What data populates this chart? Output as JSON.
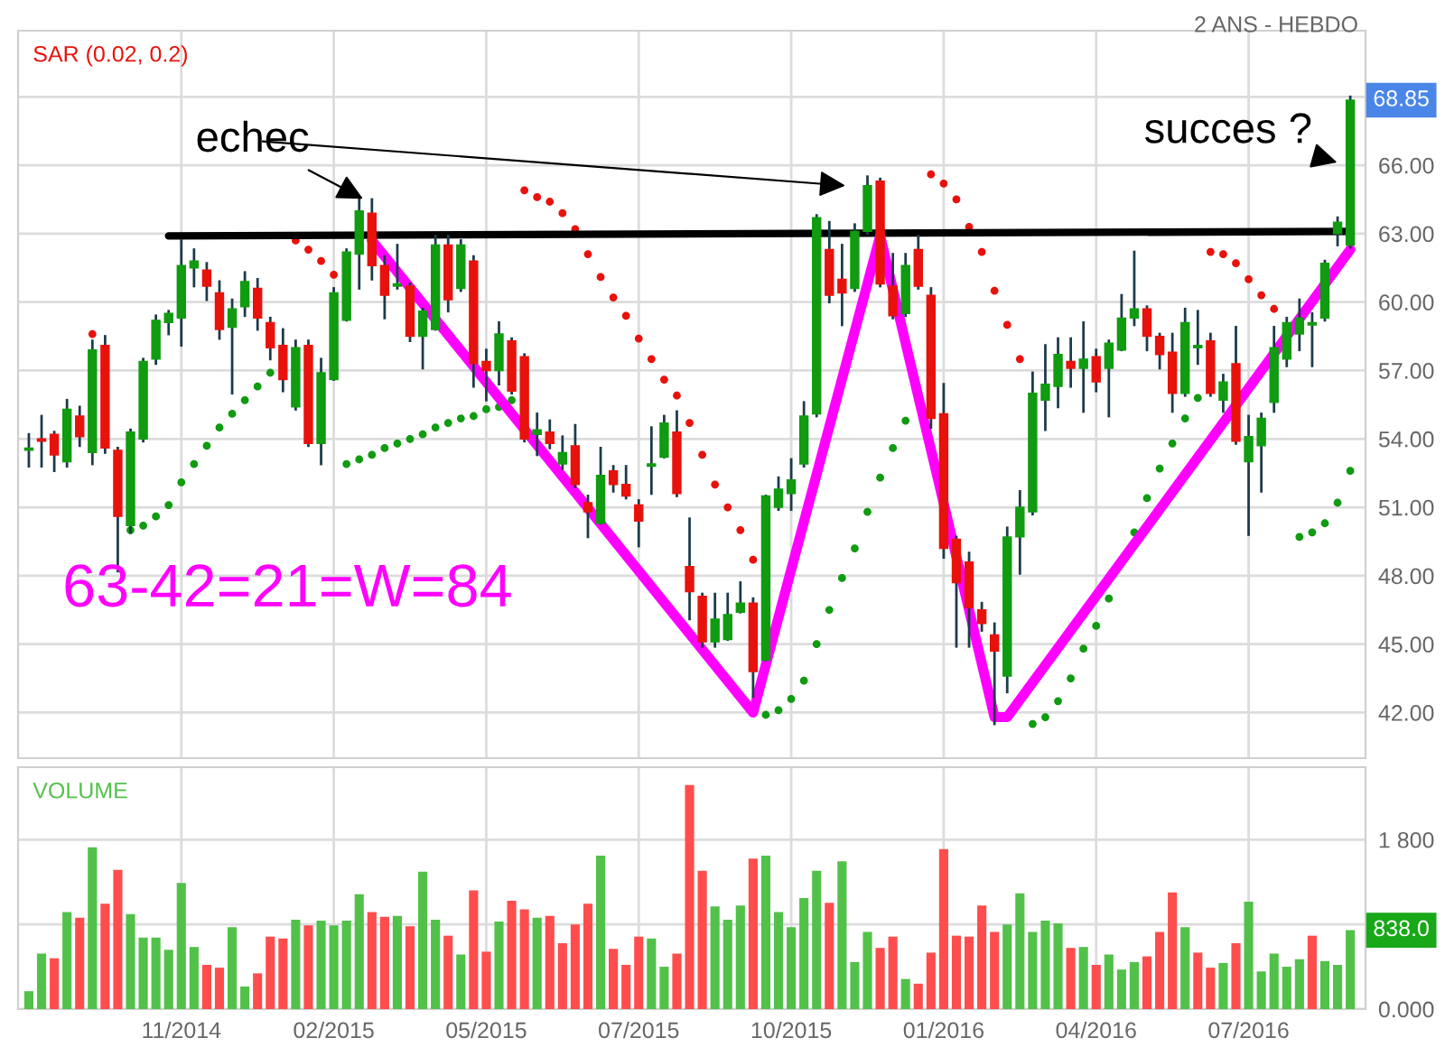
{
  "chart_data": [
    {
      "type": "candlestick",
      "subtitle": "2 ANS - HEBDO",
      "categories": [
        null,
        null,
        null,
        null,
        null,
        null,
        null,
        null,
        null,
        null,
        null,
        null,
        null,
        null,
        null,
        null,
        null,
        null,
        null,
        null,
        null,
        null,
        null,
        null,
        null,
        null,
        null,
        null,
        null,
        null,
        null,
        null,
        null,
        null,
        null,
        null,
        null,
        null,
        null,
        null,
        null,
        null,
        null,
        null,
        null,
        null,
        null,
        null,
        null,
        null,
        null,
        null,
        null,
        null,
        null,
        null,
        null,
        null,
        null,
        null,
        null,
        null,
        null,
        null,
        null,
        null,
        null,
        null,
        null,
        null,
        null,
        null,
        null,
        null,
        null,
        null,
        null,
        null,
        null,
        null,
        null,
        null,
        null,
        null,
        null,
        null,
        null,
        null,
        null,
        null,
        null,
        null,
        null,
        null,
        null,
        null,
        null,
        null,
        null,
        null,
        null,
        null,
        null,
        null,
        null
      ],
      "ohlc": [
        [
          53.5,
          54.2,
          52.8,
          53.6
        ],
        [
          54.0,
          55.0,
          52.8,
          53.9
        ],
        [
          54.2,
          54.3,
          52.6,
          53.3
        ],
        [
          53.0,
          55.7,
          52.8,
          55.3
        ],
        [
          55.0,
          55.4,
          53.7,
          54.1
        ],
        [
          53.4,
          58.3,
          52.9,
          57.9
        ],
        [
          58.1,
          58.5,
          53.4,
          53.6
        ],
        [
          53.5,
          53.6,
          48.2,
          50.6
        ],
        [
          50.2,
          54.4,
          49.9,
          54.3
        ],
        [
          54.0,
          57.5,
          53.9,
          57.4
        ],
        [
          57.5,
          59.4,
          57.3,
          59.2
        ],
        [
          59.1,
          59.6,
          58.6,
          59.5
        ],
        [
          59.3,
          62.7,
          58.1,
          61.6
        ],
        [
          61.5,
          62.3,
          60.7,
          61.8
        ],
        [
          61.4,
          61.7,
          60.1,
          60.7
        ],
        [
          60.4,
          60.9,
          58.4,
          58.8
        ],
        [
          58.9,
          60.1,
          56.0,
          59.7
        ],
        [
          59.8,
          61.3,
          59.4,
          60.9
        ],
        [
          60.6,
          61.0,
          58.8,
          59.3
        ],
        [
          59.1,
          59.3,
          57.5,
          58.0
        ],
        [
          58.1,
          58.8,
          56.1,
          56.6
        ],
        [
          55.4,
          58.3,
          55.3,
          58.0
        ],
        [
          58.1,
          58.3,
          53.7,
          53.8
        ],
        [
          53.8,
          57.5,
          52.9,
          56.9
        ],
        [
          56.6,
          60.6,
          56.6,
          60.4
        ],
        [
          59.2,
          62.3,
          59.2,
          62.2
        ],
        [
          62.1,
          64.5,
          60.6,
          64.0
        ],
        [
          63.9,
          64.5,
          61.0,
          61.6
        ],
        [
          61.6,
          62.0,
          59.3,
          60.3
        ],
        [
          60.7,
          62.5,
          60.6,
          60.8
        ],
        [
          60.7,
          60.8,
          58.3,
          58.5
        ],
        [
          58.5,
          59.7,
          57.1,
          59.6
        ],
        [
          58.8,
          62.9,
          58.8,
          62.5
        ],
        [
          62.5,
          62.9,
          59.6,
          60.1
        ],
        [
          60.6,
          62.7,
          60.5,
          62.5
        ],
        [
          61.8,
          62.0,
          56.3,
          57.3
        ],
        [
          57.4,
          57.9,
          55.7,
          57.0
        ],
        [
          57.0,
          59.1,
          56.4,
          58.6
        ],
        [
          58.3,
          58.4,
          56.0,
          56.1
        ],
        [
          57.6,
          57.7,
          53.9,
          54.0
        ],
        [
          54.2,
          55.1,
          53.3,
          54.4
        ],
        [
          54.3,
          54.8,
          53.6,
          53.8
        ],
        [
          52.9,
          54.1,
          52.7,
          53.4
        ],
        [
          53.7,
          54.6,
          51.9,
          52.0
        ],
        [
          51.2,
          51.5,
          49.7,
          50.8
        ],
        [
          50.3,
          53.6,
          50.3,
          52.4
        ],
        [
          52.6,
          52.8,
          51.7,
          52.0
        ],
        [
          52.0,
          52.8,
          51.4,
          51.5
        ],
        [
          51.1,
          51.3,
          49.3,
          50.4
        ],
        [
          52.8,
          54.5,
          51.6,
          52.9
        ],
        [
          53.2,
          55.0,
          53.2,
          54.7
        ],
        [
          54.3,
          55.2,
          51.5,
          51.6
        ],
        [
          48.4,
          50.5,
          46.1,
          47.3
        ],
        [
          47.1,
          47.2,
          44.9,
          45.1
        ],
        [
          45.1,
          47.2,
          44.9,
          46.1
        ],
        [
          45.2,
          47.2,
          45.2,
          46.3
        ],
        [
          46.4,
          47.7,
          46.4,
          46.8
        ],
        [
          46.8,
          47.0,
          42.7,
          43.8
        ],
        [
          44.3,
          51.5,
          44.3,
          51.5
        ],
        [
          51.0,
          52.3,
          50.9,
          51.8
        ],
        [
          51.6,
          53.1,
          50.9,
          52.2
        ],
        [
          52.9,
          55.6,
          52.8,
          55.0
        ],
        [
          55.1,
          63.8,
          55.0,
          63.7
        ],
        [
          62.3,
          63.5,
          60.0,
          60.3
        ],
        [
          61.0,
          62.5,
          59.0,
          60.4
        ],
        [
          60.6,
          63.4,
          60.5,
          63.1
        ],
        [
          63.1,
          65.5,
          63.0,
          65.1
        ],
        [
          65.3,
          65.4,
          60.7,
          60.8
        ],
        [
          60.7,
          62.1,
          59.3,
          59.4
        ],
        [
          59.5,
          62.1,
          59.4,
          61.6
        ],
        [
          62.3,
          62.9,
          60.6,
          60.7
        ],
        [
          60.3,
          60.6,
          54.5,
          54.9
        ],
        [
          55.1,
          56.4,
          48.8,
          49.2
        ],
        [
          49.6,
          49.7,
          44.9,
          47.7
        ],
        [
          48.6,
          49.0,
          44.9,
          46.6
        ],
        [
          46.5,
          46.8,
          45.6,
          45.9
        ],
        [
          45.4,
          45.9,
          41.5,
          44.7
        ],
        [
          43.6,
          50.1,
          42.9,
          49.7
        ],
        [
          49.7,
          51.7,
          48.1,
          51.0
        ],
        [
          50.8,
          56.9,
          50.7,
          56.0
        ],
        [
          55.7,
          58.1,
          54.4,
          56.4
        ],
        [
          56.3,
          58.4,
          55.4,
          57.7
        ],
        [
          57.4,
          58.4,
          56.3,
          57.1
        ],
        [
          57.1,
          59.1,
          55.2,
          57.5
        ],
        [
          57.6,
          57.9,
          56.1,
          56.5
        ],
        [
          57.1,
          58.3,
          55.0,
          58.2
        ],
        [
          57.9,
          60.3,
          57.9,
          59.3
        ],
        [
          59.3,
          62.2,
          59.0,
          59.7
        ],
        [
          59.7,
          59.8,
          57.9,
          58.5
        ],
        [
          58.5,
          58.6,
          57.1,
          57.7
        ],
        [
          57.8,
          58.6,
          55.2,
          56.0
        ],
        [
          56.0,
          59.7,
          55.9,
          59.1
        ],
        [
          58.0,
          59.6,
          57.3,
          58.1
        ],
        [
          58.3,
          58.6,
          55.9,
          56.0
        ],
        [
          55.7,
          56.8,
          55.2,
          56.5
        ],
        [
          57.3,
          58.9,
          53.8,
          53.9
        ],
        [
          53.0,
          55.0,
          49.8,
          54.1
        ],
        [
          53.7,
          55.1,
          51.7,
          54.9
        ],
        [
          55.6,
          58.9,
          55.2,
          58.0
        ],
        [
          57.5,
          59.3,
          57.2,
          59.1
        ],
        [
          58.6,
          60.1,
          57.9,
          59.3
        ],
        [
          59.0,
          59.5,
          57.2,
          59.1
        ],
        [
          59.3,
          61.8,
          59.2,
          61.7
        ],
        [
          63.0,
          63.7,
          62.5,
          63.5
        ],
        [
          62.5,
          69.0,
          62.4,
          68.85
        ]
      ],
      "colors": [
        "#109b10",
        "#e8120c",
        "#e8120c",
        "#109b10",
        "#e8120c",
        "#109b10",
        "#e8120c",
        "#e8120c",
        "#109b10",
        "#109b10",
        "#109b10",
        "#109b10",
        "#109b10",
        "#109b10",
        "#e8120c",
        "#e8120c",
        "#109b10",
        "#109b10",
        "#e8120c",
        "#e8120c",
        "#e8120c",
        "#109b10",
        "#e8120c",
        "#109b10",
        "#109b10",
        "#109b10",
        "#109b10",
        "#e8120c",
        "#e8120c",
        "#109b10",
        "#e8120c",
        "#109b10",
        "#109b10",
        "#e8120c",
        "#109b10",
        "#e8120c",
        "#e8120c",
        "#109b10",
        "#e8120c",
        "#e8120c",
        "#109b10",
        "#e8120c",
        "#109b10",
        "#e8120c",
        "#e8120c",
        "#109b10",
        "#e8120c",
        "#e8120c",
        "#e8120c",
        "#109b10",
        "#109b10",
        "#e8120c",
        "#e8120c",
        "#e8120c",
        "#109b10",
        "#109b10",
        "#109b10",
        "#e8120c",
        "#109b10",
        "#109b10",
        "#109b10",
        "#109b10",
        "#109b10",
        "#e8120c",
        "#e8120c",
        "#109b10",
        "#109b10",
        "#e8120c",
        "#e8120c",
        "#109b10",
        "#e8120c",
        "#e8120c",
        "#e8120c",
        "#e8120c",
        "#e8120c",
        "#e8120c",
        "#e8120c",
        "#109b10",
        "#109b10",
        "#109b10",
        "#109b10",
        "#109b10",
        "#e8120c",
        "#109b10",
        "#e8120c",
        "#109b10",
        "#109b10",
        "#109b10",
        "#e8120c",
        "#e8120c",
        "#e8120c",
        "#109b10",
        "#109b10",
        "#e8120c",
        "#109b10",
        "#e8120c",
        "#109b10",
        "#109b10",
        "#109b10",
        "#109b10",
        "#109b10",
        "#109b10",
        "#109b10",
        "#109b10",
        "#109b10"
      ],
      "series": [
        {
          "type": "scatter",
          "name": "SAR (0.02, 0.2)",
          "color": "#e8120c",
          "marker": "circle",
          "values": [
            null,
            null,
            null,
            null,
            null,
            58.6,
            null,
            null,
            null,
            null,
            null,
            null,
            null,
            null,
            null,
            null,
            null,
            null,
            null,
            null,
            null,
            62.7,
            62.3,
            61.8,
            61.2,
            null,
            null,
            null,
            null,
            null,
            null,
            null,
            null,
            null,
            null,
            null,
            null,
            null,
            null,
            64.9,
            64.6,
            64.4,
            63.9,
            63.2,
            62.1,
            61.1,
            60.2,
            59.4,
            58.4,
            57.5,
            56.6,
            55.9,
            54.7,
            53.3,
            52.0,
            51.0,
            50.0,
            48.7,
            null,
            null,
            null,
            null,
            null,
            null,
            null,
            null,
            null,
            null,
            null,
            null,
            null,
            65.6,
            65.2,
            64.5,
            63.3,
            62.2,
            60.5,
            59.0,
            57.5,
            null,
            null,
            null,
            null,
            null,
            null,
            null,
            null,
            null,
            null,
            null,
            null,
            null,
            null,
            62.2,
            62.1,
            61.7,
            61.0,
            60.3,
            59.7,
            null,
            null,
            null,
            null,
            null,
            null
          ]
        },
        {
          "type": "scatter",
          "color": "#109b10",
          "marker": "circle",
          "values": [
            null,
            null,
            null,
            null,
            null,
            null,
            null,
            null,
            50.0,
            50.2,
            50.6,
            51.1,
            52.1,
            52.9,
            53.7,
            54.5,
            55.1,
            55.7,
            56.3,
            56.9,
            null,
            null,
            null,
            null,
            null,
            52.9,
            53.1,
            53.3,
            53.6,
            53.8,
            54.0,
            54.2,
            54.5,
            54.7,
            54.9,
            55.0,
            55.3,
            55.4,
            55.7,
            null,
            null,
            null,
            null,
            null,
            null,
            null,
            null,
            null,
            null,
            null,
            null,
            null,
            null,
            null,
            null,
            null,
            null,
            null,
            41.9,
            42.1,
            42.6,
            43.4,
            45.0,
            46.5,
            47.9,
            49.2,
            50.8,
            52.3,
            53.6,
            54.8,
            null,
            null,
            null,
            null,
            null,
            null,
            null,
            null,
            null,
            41.5,
            41.8,
            42.5,
            43.5,
            44.8,
            45.8,
            47.0,
            null,
            49.9,
            51.4,
            52.7,
            53.8,
            54.9,
            55.8,
            null,
            null,
            null,
            null,
            null,
            null,
            null,
            49.7,
            49.9,
            50.3,
            51.2,
            52.6
          ]
        },
        {
          "type": "line",
          "color": "#000000",
          "values": [
            null,
            null,
            null,
            null,
            null,
            null,
            null,
            null,
            null,
            null,
            null,
            62.9,
            null,
            null,
            null,
            null,
            null,
            null,
            null,
            null,
            null,
            null,
            null,
            null,
            null,
            null,
            null,
            null,
            null,
            null,
            null,
            null,
            null,
            null,
            null,
            null,
            null,
            null,
            null,
            null,
            null,
            null,
            null,
            null,
            null,
            null,
            null,
            null,
            null,
            null,
            null,
            null,
            null,
            null,
            null,
            null,
            null,
            null,
            null,
            null,
            null,
            null,
            null,
            null,
            null,
            null,
            null,
            null,
            null,
            null,
            null,
            null,
            null,
            null,
            null,
            null,
            null,
            null,
            null,
            null,
            null,
            null,
            null,
            null,
            null,
            null,
            null,
            null,
            null,
            null,
            null,
            null,
            null,
            null,
            null,
            null,
            null,
            null,
            null,
            null,
            null,
            null,
            null,
            null,
            63.1
          ]
        },
        {
          "type": "line",
          "color": "#ff00ff",
          "values": [
            null,
            null,
            null,
            null,
            null,
            null,
            null,
            null,
            null,
            null,
            null,
            null,
            null,
            null,
            null,
            null,
            null,
            null,
            null,
            null,
            null,
            null,
            null,
            null,
            null,
            null,
            null,
            62.7,
            null,
            null,
            null,
            null,
            null,
            null,
            null,
            null,
            null,
            null,
            null,
            null,
            null,
            null,
            null,
            null,
            null,
            null,
            null,
            null,
            null,
            null,
            null,
            null,
            null,
            null,
            null,
            null,
            null,
            42.0,
            null,
            null,
            null,
            null,
            null,
            null,
            null,
            null,
            null,
            62.9,
            null,
            null,
            null,
            null,
            null,
            null,
            null,
            null,
            41.8,
            41.8,
            null,
            null,
            null,
            null,
            null,
            null,
            null,
            null,
            null,
            null,
            null,
            null,
            null,
            null,
            null,
            null,
            null,
            null,
            null,
            null,
            null,
            null,
            null,
            null,
            null,
            null,
            62.3
          ]
        }
      ],
      "annotations": [
        "echec",
        "succes ?",
        "63-42=21=W=84",
        {
          "text": "68.85",
          "y": 68.85
        }
      ],
      "ylim": [
        40.0,
        71.9
      ],
      "yticks": [
        {
          "value": 42,
          "label": "42.00"
        },
        {
          "value": 45,
          "label": "45.00"
        },
        {
          "value": 48,
          "label": "48.00"
        },
        {
          "value": 51,
          "label": "51.00"
        },
        {
          "value": 54,
          "label": "54.00"
        },
        {
          "value": 57,
          "label": "57.00"
        },
        {
          "value": 60,
          "label": "60.00"
        },
        {
          "value": 63,
          "label": "63.00"
        },
        {
          "value": 66,
          "label": "66.00"
        },
        {
          "value": 69,
          "label": null
        }
      ],
      "tick_labels": "y",
      "grid": true,
      "legend": "top left"
    },
    {
      "type": "bar",
      "categories": [
        null,
        null,
        null,
        null,
        null,
        null,
        null,
        null,
        null,
        null,
        null,
        null,
        "11/2014",
        null,
        null,
        null,
        null,
        null,
        null,
        null,
        null,
        null,
        null,
        null,
        "02/2015",
        null,
        null,
        null,
        null,
        null,
        null,
        null,
        null,
        null,
        null,
        null,
        "05/2015",
        null,
        null,
        null,
        null,
        null,
        null,
        null,
        null,
        null,
        null,
        null,
        "07/2015",
        null,
        null,
        null,
        null,
        null,
        null,
        null,
        null,
        null,
        null,
        null,
        "10/2015",
        null,
        null,
        null,
        null,
        null,
        null,
        null,
        null,
        null,
        null,
        null,
        "01/2016",
        null,
        null,
        null,
        null,
        null,
        null,
        null,
        null,
        null,
        null,
        null,
        "04/2016",
        null,
        null,
        null,
        null,
        null,
        null,
        null,
        null,
        null,
        null,
        null,
        "07/2016",
        null,
        null,
        null,
        null,
        null,
        null,
        null,
        null
      ],
      "series": [
        {
          "name": "VOLUME",
          "color": "#52c14a",
          "values": [
            190,
            590,
            540,
            1030,
            970,
            1720,
            1120,
            1480,
            1010,
            760,
            760,
            630,
            1340,
            660,
            470,
            440,
            870,
            240,
            380,
            770,
            750,
            950,
            890,
            940,
            890,
            940,
            1220,
            1030,
            980,
            990,
            880,
            1460,
            950,
            780,
            580,
            1260,
            610,
            930,
            1150,
            1060,
            970,
            990,
            700,
            900,
            1120,
            1630,
            640,
            470,
            770,
            750,
            450,
            590,
            2380,
            1470,
            1090,
            950,
            1100,
            1600,
            1630,
            1030,
            870,
            1180,
            1470,
            1130,
            1570,
            500,
            820,
            650,
            770,
            320,
            270,
            600,
            1700,
            780,
            770,
            1100,
            820,
            900,
            1230,
            820,
            940,
            910,
            650,
            660,
            470,
            580,
            420,
            500,
            560,
            820,
            1240,
            870,
            600,
            440,
            490,
            700,
            1140,
            400,
            590,
            450,
            530,
            780,
            510,
            470,
            838
          ],
          "colors": [
            "#52c14a",
            "#52c14a",
            "#ff4d4d",
            "#52c14a",
            "#ff4d4d",
            "#52c14a",
            "#ff4d4d",
            "#ff4d4d",
            "#52c14a",
            "#52c14a",
            "#52c14a",
            "#52c14a",
            "#52c14a",
            "#52c14a",
            "#ff4d4d",
            "#ff4d4d",
            "#52c14a",
            "#52c14a",
            "#ff4d4d",
            "#ff4d4d",
            "#ff4d4d",
            "#52c14a",
            "#ff4d4d",
            "#52c14a",
            "#52c14a",
            "#52c14a",
            "#52c14a",
            "#ff4d4d",
            "#ff4d4d",
            "#52c14a",
            "#ff4d4d",
            "#52c14a",
            "#52c14a",
            "#ff4d4d",
            "#52c14a",
            "#ff4d4d",
            "#ff4d4d",
            "#52c14a",
            "#ff4d4d",
            "#ff4d4d",
            "#52c14a",
            "#ff4d4d",
            "#ff4d4d",
            "#ff4d4d",
            "#ff4d4d",
            "#52c14a",
            "#ff4d4d",
            "#ff4d4d",
            "#ff4d4d",
            "#52c14a",
            "#52c14a",
            "#ff4d4d",
            "#ff4d4d",
            "#ff4d4d",
            "#52c14a",
            "#52c14a",
            "#52c14a",
            "#ff4d4d",
            "#52c14a",
            "#52c14a",
            "#52c14a",
            "#52c14a",
            "#52c14a",
            "#ff4d4d",
            "#52c14a",
            "#52c14a",
            "#52c14a",
            "#ff4d4d",
            "#ff4d4d",
            "#52c14a",
            "#ff4d4d",
            "#ff4d4d",
            "#ff4d4d",
            "#ff4d4d",
            "#ff4d4d",
            "#ff4d4d",
            "#ff4d4d",
            "#52c14a",
            "#52c14a",
            "#52c14a",
            "#52c14a",
            "#52c14a",
            "#ff4d4d",
            "#52c14a",
            "#ff4d4d",
            "#52c14a",
            "#52c14a",
            "#52c14a",
            "#ff4d4d",
            "#ff4d4d",
            "#ff4d4d",
            "#52c14a",
            "#ff4d4d",
            "#ff4d4d",
            "#52c14a",
            "#ff4d4d",
            "#52c14a",
            "#52c14a",
            "#52c14a",
            "#52c14a",
            "#52c14a",
            "#ff4d4d",
            "#52c14a",
            "#52c14a",
            "#52c14a"
          ]
        }
      ],
      "annotations": [
        {
          "text": "838.0",
          "y": 838
        }
      ],
      "ylim": [
        0,
        2570
      ],
      "yticks": [
        {
          "value": 0,
          "label": "0.000"
        },
        {
          "value": 900,
          "label": null
        },
        {
          "value": 1800,
          "label": "1 800"
        }
      ],
      "grid": true,
      "legend": "top left"
    }
  ]
}
